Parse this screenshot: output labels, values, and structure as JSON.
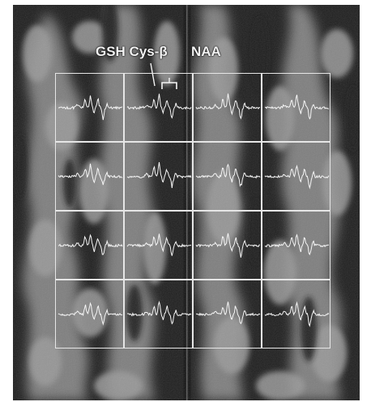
{
  "annotations": {
    "gsh_cys_label": "GSH Cys-β",
    "naa_label": "NAA"
  },
  "grid": {
    "rows": 4,
    "cols": 4,
    "line_color": "#e6e6e6",
    "spectrum_color": "#f5f5f5"
  },
  "background": {
    "description_color_dark": "#1c1c1c",
    "description_color_tissue": "#8a8a8a"
  }
}
